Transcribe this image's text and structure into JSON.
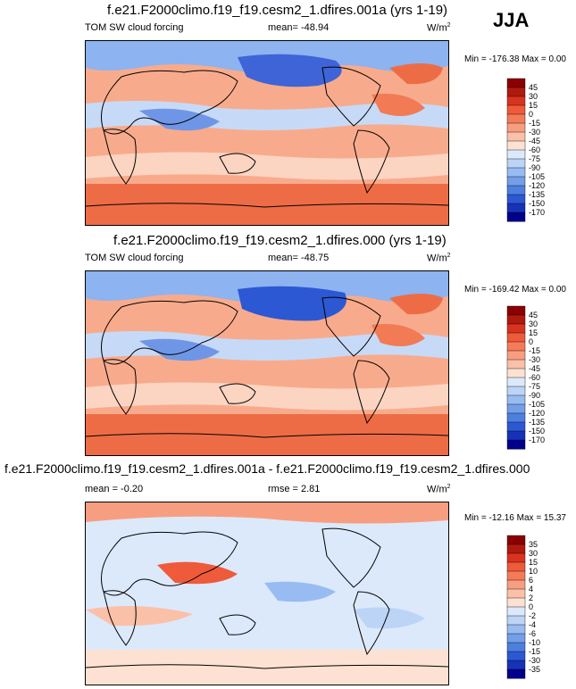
{
  "season": "JJA",
  "chart_data": [
    {
      "type": "heatmap",
      "title": "f.e21.F2000climo.f19_f19.cesm2_1.dfires.001a (yrs 1-19)",
      "left_label": "TOM SW cloud forcing",
      "center_label": "mean= -48.94",
      "units": "W/m",
      "units_sup": "2",
      "minmax_label": "Min = -176.38 Max =   0.00",
      "colorbar_labels": [
        "45",
        "30",
        "15",
        "0",
        "-15",
        "-30",
        "-45",
        "-60",
        "-75",
        "-90",
        "-105",
        "-120",
        "-135",
        "-150",
        "-170"
      ],
      "colors": [
        "#8b0000",
        "#b01a0e",
        "#d9331f",
        "#ef5a3a",
        "#f57b58",
        "#f89e80",
        "#fbc0a8",
        "#fde2d3",
        "#dce9fb",
        "#bcd4f6",
        "#98bcf2",
        "#739ee8",
        "#4d7fde",
        "#2d58d4",
        "#1632b8",
        "#00008b"
      ]
    },
    {
      "type": "heatmap",
      "title": "f.e21.F2000climo.f19_f19.cesm2_1.dfires.000 (yrs 1-19)",
      "left_label": "TOM SW cloud forcing",
      "center_label": "mean= -48.75",
      "units": "W/m",
      "units_sup": "2",
      "minmax_label": "Min = -169.42 Max =   0.00",
      "colorbar_labels": [
        "45",
        "30",
        "15",
        "0",
        "-15",
        "-30",
        "-45",
        "-60",
        "-75",
        "-90",
        "-105",
        "-120",
        "-135",
        "-150",
        "-170"
      ],
      "colors": [
        "#8b0000",
        "#b01a0e",
        "#d9331f",
        "#ef5a3a",
        "#f57b58",
        "#f89e80",
        "#fbc0a8",
        "#fde2d3",
        "#dce9fb",
        "#bcd4f6",
        "#98bcf2",
        "#739ee8",
        "#4d7fde",
        "#2d58d4",
        "#1632b8",
        "#00008b"
      ]
    },
    {
      "type": "heatmap",
      "title": "f.e21.F2000climo.f19_f19.cesm2_1.dfires.001a - f.e21.F2000climo.f19_f19.cesm2_1.dfires.000",
      "left_label": "mean =  -0.20",
      "center_label": "rmse =   2.81",
      "units": "W/m",
      "units_sup": "2",
      "minmax_label": "Min = -12.16 Max =  15.37",
      "colorbar_labels": [
        "35",
        "30",
        "15",
        "10",
        "6",
        "4",
        "2",
        "0",
        "-2",
        "-4",
        "-6",
        "-10",
        "-15",
        "-30",
        "-35"
      ],
      "colors": [
        "#8b0000",
        "#b01a0e",
        "#d9331f",
        "#ef5a3a",
        "#f57b58",
        "#f89e80",
        "#fbc0a8",
        "#fde2d3",
        "#dce9fb",
        "#bcd4f6",
        "#98bcf2",
        "#739ee8",
        "#4d7fde",
        "#2d58d4",
        "#1632b8",
        "#00008b"
      ]
    }
  ]
}
